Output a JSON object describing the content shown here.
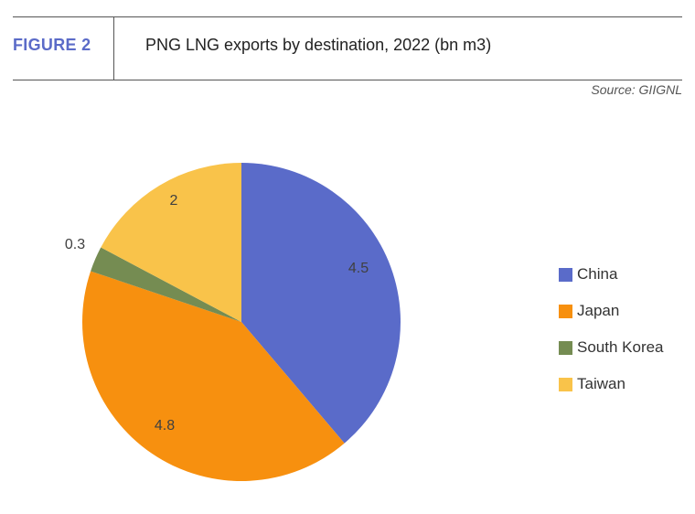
{
  "header": {
    "figure_label": "FIGURE 2",
    "title": "PNG LNG exports by destination, 2022 (bn m3)",
    "source": "Source: GIIGNL"
  },
  "colors": {
    "accent": "#5B6BC8",
    "China": "#5A6BC9",
    "Japan": "#F7900F",
    "South Korea": "#758C52",
    "Taiwan": "#F9C34A"
  },
  "chart_data": {
    "type": "pie",
    "title": "PNG LNG exports by destination, 2022 (bn m3)",
    "categories": [
      "China",
      "Japan",
      "South Korea",
      "Taiwan"
    ],
    "values": [
      4.5,
      4.8,
      0.3,
      2
    ],
    "data_labels": [
      "4.5",
      "4.8",
      "0.3",
      "2"
    ],
    "start_angle": "12 o'clock",
    "direction": "clockwise",
    "legend_position": "right"
  }
}
